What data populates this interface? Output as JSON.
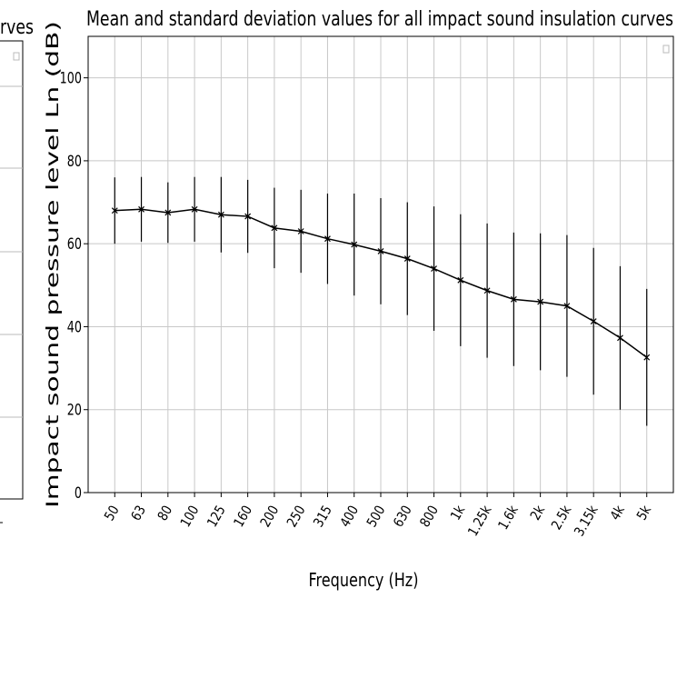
{
  "left_fragment": {
    "text": "rves"
  },
  "chart_data": {
    "type": "errorbar",
    "title": "Mean and standard deviation values for all impact sound insulation curves",
    "x_label": "Frequency (Hz)",
    "y_label": "Impact sound pressure level Ln (dB)",
    "categories": [
      "50",
      "63",
      "80",
      "100",
      "125",
      "160",
      "200",
      "250",
      "315",
      "400",
      "500",
      "630",
      "800",
      "1k",
      "1.25k",
      "1.6k",
      "2k",
      "2.5k",
      "3.15k",
      "4k",
      "5k"
    ],
    "series": [
      {
        "color": "#000000",
        "values": [
          68,
          68.3,
          67.5,
          68.3,
          67,
          66.6,
          63.8,
          63,
          61.2,
          59.8,
          58.2,
          56.4,
          54,
          51.2,
          48.7,
          46.6,
          46,
          45,
          41.3,
          37.3,
          32.6
        ],
        "errors": [
          8,
          7.8,
          7.3,
          7.8,
          9.1,
          8.8,
          9.7,
          10,
          10.9,
          12.3,
          12.8,
          13.6,
          15,
          15.9,
          16.2,
          16.1,
          16.5,
          17.1,
          17.7,
          17.3,
          16.5
        ]
      }
    ],
    "ylim": [
      0,
      110
    ],
    "yticks": [
      0,
      20,
      40,
      60,
      80,
      100
    ],
    "grid": true
  }
}
